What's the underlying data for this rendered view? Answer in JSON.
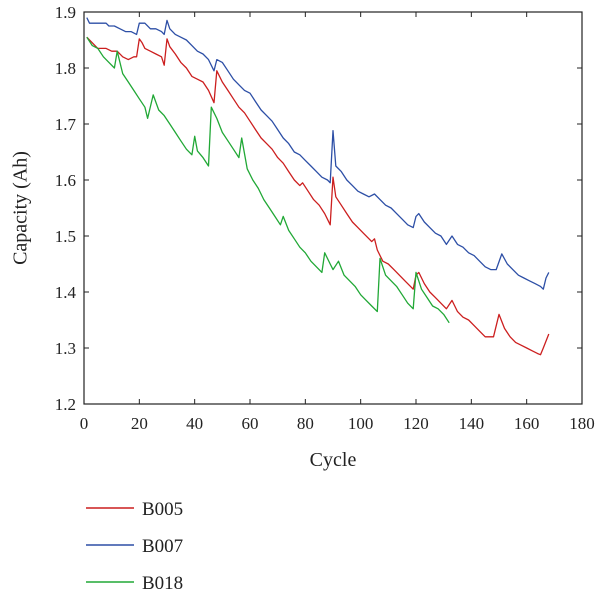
{
  "chart_data": {
    "type": "line",
    "title": "",
    "xlabel": "Cycle",
    "ylabel": "Capacity (Ah)",
    "xlim": [
      0,
      180
    ],
    "ylim": [
      1.2,
      1.9
    ],
    "xticks": [
      0,
      20,
      40,
      60,
      80,
      100,
      120,
      140,
      160,
      180
    ],
    "yticks": [
      1.2,
      1.3,
      1.4,
      1.5,
      1.6,
      1.7,
      1.8,
      1.9
    ],
    "grid": false,
    "legend_position": "below-left",
    "series": [
      {
        "name": "B005",
        "color": "#cc1f1f",
        "points": [
          [
            1,
            1.855
          ],
          [
            3,
            1.845
          ],
          [
            5,
            1.835
          ],
          [
            8,
            1.835
          ],
          [
            10,
            1.83
          ],
          [
            12,
            1.83
          ],
          [
            14,
            1.82
          ],
          [
            16,
            1.815
          ],
          [
            18,
            1.82
          ],
          [
            19,
            1.82
          ],
          [
            20,
            1.852
          ],
          [
            21,
            1.845
          ],
          [
            22,
            1.835
          ],
          [
            24,
            1.83
          ],
          [
            26,
            1.825
          ],
          [
            28,
            1.82
          ],
          [
            29,
            1.805
          ],
          [
            30,
            1.852
          ],
          [
            31,
            1.838
          ],
          [
            33,
            1.825
          ],
          [
            35,
            1.81
          ],
          [
            37,
            1.8
          ],
          [
            39,
            1.785
          ],
          [
            41,
            1.78
          ],
          [
            43,
            1.775
          ],
          [
            45,
            1.76
          ],
          [
            47,
            1.738
          ],
          [
            48,
            1.795
          ],
          [
            50,
            1.775
          ],
          [
            52,
            1.76
          ],
          [
            54,
            1.745
          ],
          [
            56,
            1.73
          ],
          [
            58,
            1.72
          ],
          [
            60,
            1.705
          ],
          [
            62,
            1.69
          ],
          [
            64,
            1.675
          ],
          [
            66,
            1.665
          ],
          [
            68,
            1.655
          ],
          [
            70,
            1.64
          ],
          [
            72,
            1.63
          ],
          [
            74,
            1.615
          ],
          [
            76,
            1.6
          ],
          [
            78,
            1.59
          ],
          [
            79,
            1.595
          ],
          [
            81,
            1.58
          ],
          [
            83,
            1.565
          ],
          [
            85,
            1.555
          ],
          [
            87,
            1.54
          ],
          [
            89,
            1.52
          ],
          [
            90,
            1.605
          ],
          [
            91,
            1.57
          ],
          [
            93,
            1.555
          ],
          [
            95,
            1.54
          ],
          [
            97,
            1.525
          ],
          [
            99,
            1.515
          ],
          [
            101,
            1.505
          ],
          [
            103,
            1.495
          ],
          [
            104,
            1.49
          ],
          [
            105,
            1.495
          ],
          [
            106,
            1.475
          ],
          [
            108,
            1.455
          ],
          [
            110,
            1.45
          ],
          [
            112,
            1.44
          ],
          [
            114,
            1.43
          ],
          [
            116,
            1.42
          ],
          [
            118,
            1.41
          ],
          [
            119,
            1.405
          ],
          [
            120,
            1.43
          ],
          [
            121,
            1.435
          ],
          [
            123,
            1.415
          ],
          [
            125,
            1.4
          ],
          [
            127,
            1.39
          ],
          [
            129,
            1.38
          ],
          [
            131,
            1.37
          ],
          [
            133,
            1.385
          ],
          [
            135,
            1.365
          ],
          [
            137,
            1.355
          ],
          [
            139,
            1.35
          ],
          [
            141,
            1.34
          ],
          [
            143,
            1.33
          ],
          [
            145,
            1.32
          ],
          [
            148,
            1.32
          ],
          [
            150,
            1.36
          ],
          [
            152,
            1.335
          ],
          [
            154,
            1.32
          ],
          [
            156,
            1.31
          ],
          [
            158,
            1.305
          ],
          [
            160,
            1.3
          ],
          [
            162,
            1.295
          ],
          [
            164,
            1.29
          ],
          [
            165,
            1.288
          ],
          [
            166,
            1.3
          ],
          [
            168,
            1.325
          ]
        ]
      },
      {
        "name": "B007",
        "color": "#2d4fa6",
        "points": [
          [
            1,
            1.89
          ],
          [
            2,
            1.88
          ],
          [
            4,
            1.88
          ],
          [
            6,
            1.88
          ],
          [
            8,
            1.88
          ],
          [
            9,
            1.875
          ],
          [
            11,
            1.875
          ],
          [
            13,
            1.87
          ],
          [
            15,
            1.865
          ],
          [
            17,
            1.865
          ],
          [
            19,
            1.86
          ],
          [
            20,
            1.88
          ],
          [
            22,
            1.88
          ],
          [
            24,
            1.87
          ],
          [
            26,
            1.87
          ],
          [
            28,
            1.865
          ],
          [
            29,
            1.86
          ],
          [
            30,
            1.885
          ],
          [
            31,
            1.87
          ],
          [
            33,
            1.86
          ],
          [
            35,
            1.855
          ],
          [
            37,
            1.85
          ],
          [
            39,
            1.84
          ],
          [
            41,
            1.83
          ],
          [
            43,
            1.825
          ],
          [
            45,
            1.815
          ],
          [
            47,
            1.795
          ],
          [
            48,
            1.815
          ],
          [
            50,
            1.81
          ],
          [
            52,
            1.795
          ],
          [
            54,
            1.78
          ],
          [
            56,
            1.77
          ],
          [
            58,
            1.76
          ],
          [
            60,
            1.755
          ],
          [
            62,
            1.74
          ],
          [
            64,
            1.725
          ],
          [
            66,
            1.715
          ],
          [
            68,
            1.705
          ],
          [
            70,
            1.69
          ],
          [
            72,
            1.675
          ],
          [
            74,
            1.665
          ],
          [
            76,
            1.65
          ],
          [
            78,
            1.645
          ],
          [
            80,
            1.635
          ],
          [
            82,
            1.625
          ],
          [
            84,
            1.615
          ],
          [
            86,
            1.605
          ],
          [
            88,
            1.6
          ],
          [
            89,
            1.595
          ],
          [
            90,
            1.688
          ],
          [
            91,
            1.625
          ],
          [
            93,
            1.615
          ],
          [
            95,
            1.6
          ],
          [
            97,
            1.59
          ],
          [
            99,
            1.58
          ],
          [
            101,
            1.575
          ],
          [
            103,
            1.57
          ],
          [
            105,
            1.575
          ],
          [
            107,
            1.565
          ],
          [
            109,
            1.555
          ],
          [
            111,
            1.55
          ],
          [
            113,
            1.54
          ],
          [
            115,
            1.53
          ],
          [
            117,
            1.52
          ],
          [
            119,
            1.515
          ],
          [
            120,
            1.535
          ],
          [
            121,
            1.54
          ],
          [
            123,
            1.525
          ],
          [
            125,
            1.515
          ],
          [
            127,
            1.505
          ],
          [
            129,
            1.5
          ],
          [
            131,
            1.485
          ],
          [
            133,
            1.5
          ],
          [
            135,
            1.485
          ],
          [
            137,
            1.48
          ],
          [
            139,
            1.47
          ],
          [
            141,
            1.465
          ],
          [
            143,
            1.455
          ],
          [
            145,
            1.445
          ],
          [
            147,
            1.44
          ],
          [
            149,
            1.44
          ],
          [
            151,
            1.468
          ],
          [
            153,
            1.45
          ],
          [
            155,
            1.44
          ],
          [
            157,
            1.43
          ],
          [
            159,
            1.425
          ],
          [
            161,
            1.42
          ],
          [
            163,
            1.415
          ],
          [
            165,
            1.41
          ],
          [
            166,
            1.405
          ],
          [
            167,
            1.425
          ],
          [
            168,
            1.435
          ]
        ]
      },
      {
        "name": "B018",
        "color": "#21a836",
        "points": [
          [
            1,
            1.855
          ],
          [
            3,
            1.84
          ],
          [
            5,
            1.835
          ],
          [
            7,
            1.82
          ],
          [
            9,
            1.81
          ],
          [
            11,
            1.8
          ],
          [
            12,
            1.83
          ],
          [
            14,
            1.79
          ],
          [
            16,
            1.775
          ],
          [
            18,
            1.76
          ],
          [
            20,
            1.745
          ],
          [
            22,
            1.73
          ],
          [
            23,
            1.71
          ],
          [
            25,
            1.752
          ],
          [
            27,
            1.725
          ],
          [
            29,
            1.715
          ],
          [
            31,
            1.7
          ],
          [
            33,
            1.685
          ],
          [
            35,
            1.67
          ],
          [
            37,
            1.655
          ],
          [
            39,
            1.645
          ],
          [
            40,
            1.678
          ],
          [
            41,
            1.652
          ],
          [
            43,
            1.64
          ],
          [
            45,
            1.625
          ],
          [
            46,
            1.73
          ],
          [
            48,
            1.71
          ],
          [
            50,
            1.685
          ],
          [
            52,
            1.67
          ],
          [
            54,
            1.655
          ],
          [
            56,
            1.64
          ],
          [
            57,
            1.675
          ],
          [
            59,
            1.62
          ],
          [
            61,
            1.6
          ],
          [
            63,
            1.585
          ],
          [
            65,
            1.565
          ],
          [
            67,
            1.55
          ],
          [
            69,
            1.535
          ],
          [
            71,
            1.52
          ],
          [
            72,
            1.535
          ],
          [
            74,
            1.51
          ],
          [
            76,
            1.495
          ],
          [
            78,
            1.48
          ],
          [
            80,
            1.47
          ],
          [
            82,
            1.455
          ],
          [
            84,
            1.445
          ],
          [
            86,
            1.435
          ],
          [
            87,
            1.47
          ],
          [
            89,
            1.45
          ],
          [
            90,
            1.44
          ],
          [
            92,
            1.455
          ],
          [
            94,
            1.43
          ],
          [
            96,
            1.42
          ],
          [
            98,
            1.41
          ],
          [
            100,
            1.395
          ],
          [
            102,
            1.385
          ],
          [
            104,
            1.375
          ],
          [
            106,
            1.365
          ],
          [
            107,
            1.46
          ],
          [
            109,
            1.43
          ],
          [
            111,
            1.42
          ],
          [
            113,
            1.41
          ],
          [
            115,
            1.395
          ],
          [
            117,
            1.38
          ],
          [
            119,
            1.37
          ],
          [
            120,
            1.435
          ],
          [
            122,
            1.405
          ],
          [
            124,
            1.39
          ],
          [
            126,
            1.375
          ],
          [
            128,
            1.37
          ],
          [
            130,
            1.36
          ],
          [
            132,
            1.345
          ]
        ]
      }
    ]
  }
}
